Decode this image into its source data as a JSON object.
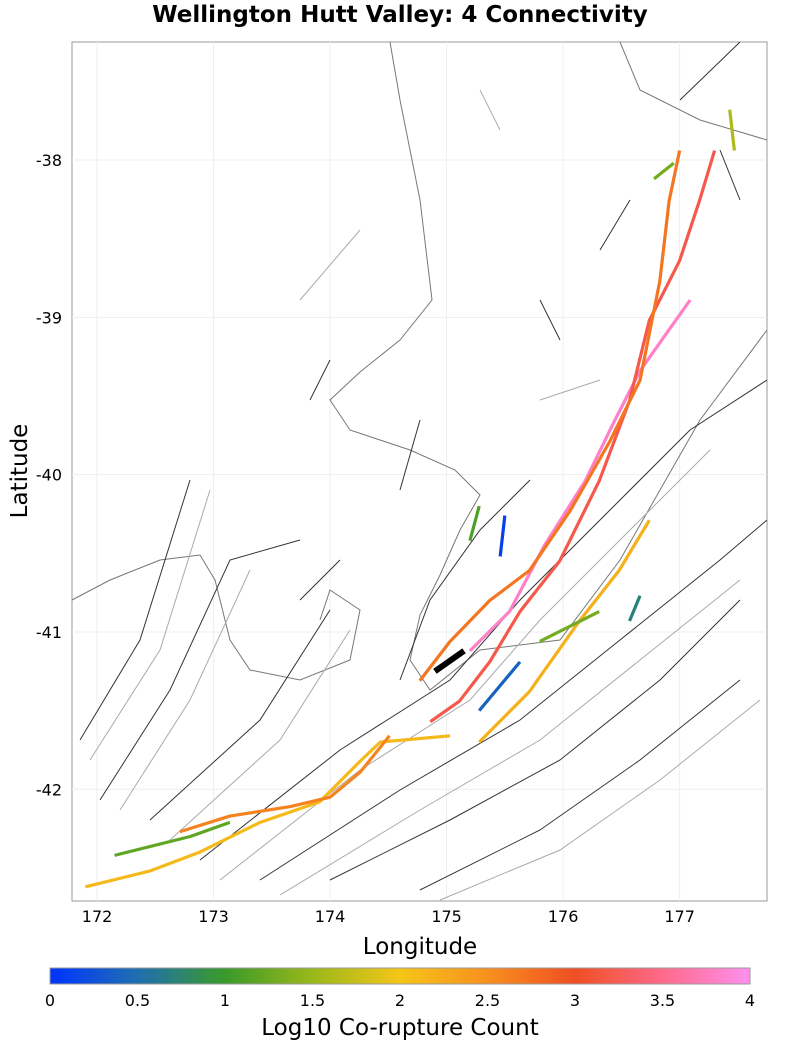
{
  "chart_data": {
    "type": "map",
    "title": "Wellington Hutt Valley: 4 Connectivity",
    "xlabel": "Longitude",
    "ylabel": "Latitude",
    "xlim": [
      171.785,
      177.75
    ],
    "ylim": [
      -42.71,
      -37.25
    ],
    "xticks": [
      "172",
      "173",
      "174",
      "175",
      "176",
      "177"
    ],
    "xtick_values": [
      172,
      173,
      174,
      175,
      176,
      177
    ],
    "yticks": [
      "-38",
      "-39",
      "-40",
      "-41",
      "-42"
    ],
    "ytick_values": [
      -38,
      -39,
      -40,
      -41,
      -42
    ],
    "colorbar": {
      "label": "Log10 Co-rupture Count",
      "range": [
        0,
        4
      ],
      "ticks": [
        "0",
        "0.5",
        "1",
        "1.5",
        "2",
        "2.5",
        "3",
        "3.5",
        "4"
      ],
      "colors": [
        "#0033ff",
        "#1f6fb0",
        "#3a9a2a",
        "#9ab81a",
        "#f5c518",
        "#f7901e",
        "#ef4e23",
        "#ff6a8a",
        "#ff8ff0"
      ]
    },
    "target_color": "#000000",
    "traces": [
      {
        "value": 3.8,
        "lon": [
          175.2,
          175.54,
          175.84,
          176.19,
          176.44,
          176.66,
          176.87,
          177.09
        ],
        "lat": [
          -41.12,
          -40.87,
          -40.45,
          -40.04,
          -39.66,
          -39.34,
          -39.12,
          -38.89
        ]
      },
      {
        "value": 3.2,
        "lon": [
          174.86,
          175.11,
          175.37,
          175.63,
          175.97,
          176.31,
          176.57,
          176.74,
          177.0,
          177.17,
          177.3
        ],
        "lat": [
          -41.57,
          -41.44,
          -41.19,
          -40.87,
          -40.55,
          -40.04,
          -39.53,
          -39.02,
          -38.64,
          -38.26,
          -37.94
        ]
      },
      {
        "value": 2.7,
        "lon": [
          174.77,
          175.03,
          175.37,
          175.71,
          176.06,
          176.4,
          176.66,
          176.83,
          176.91,
          177.0
        ],
        "lat": [
          -41.31,
          -41.06,
          -40.8,
          -40.61,
          -40.23,
          -39.79,
          -39.4,
          -38.77,
          -38.26,
          -37.94
        ]
      },
      {
        "value": 2.2,
        "lon": [
          175.28,
          175.71,
          176.14,
          176.48,
          176.74
        ],
        "lat": [
          -41.7,
          -41.38,
          -40.93,
          -40.61,
          -40.29
        ]
      },
      {
        "value": 2.1,
        "lon": [
          171.9,
          172.45,
          172.88,
          173.4,
          173.91,
          174.26,
          174.43,
          175.03
        ],
        "lat": [
          -42.62,
          -42.52,
          -42.4,
          -42.21,
          -42.08,
          -41.82,
          -41.7,
          -41.66
        ]
      },
      {
        "value": 2.6,
        "lon": [
          172.71,
          173.14,
          173.66,
          174.0,
          174.26,
          174.51
        ],
        "lat": [
          -42.27,
          -42.17,
          -42.11,
          -42.05,
          -41.89,
          -41.66
        ]
      },
      {
        "value": 1.2,
        "lon": [
          172.15,
          172.8,
          173.14
        ],
        "lat": [
          -42.42,
          -42.3,
          -42.21
        ]
      },
      {
        "value": 0.4,
        "lon": [
          175.28,
          175.63
        ],
        "lat": [
          -41.5,
          -41.19
        ]
      },
      {
        "value": 0.1,
        "lon": [
          175.5,
          175.46
        ],
        "lat": [
          -40.26,
          -40.52
        ]
      },
      {
        "value": 1.1,
        "lon": [
          175.2,
          175.28
        ],
        "lat": [
          -40.42,
          -40.2
        ]
      },
      {
        "value": 0.7,
        "lon": [
          176.57,
          176.66
        ],
        "lat": [
          -40.93,
          -40.77
        ]
      },
      {
        "value": 1.3,
        "lon": [
          175.8,
          176.31
        ],
        "lat": [
          -41.06,
          -40.87
        ]
      },
      {
        "value": 1.6,
        "lon": [
          177.43,
          177.47
        ],
        "lat": [
          -37.68,
          -37.94
        ]
      },
      {
        "value": 1.3,
        "lon": [
          176.78,
          176.95
        ],
        "lat": [
          -38.12,
          -38.02
        ]
      }
    ],
    "target": {
      "lon": [
        174.9,
        175.15
      ],
      "lat": [
        -41.25,
        -41.12
      ]
    }
  }
}
